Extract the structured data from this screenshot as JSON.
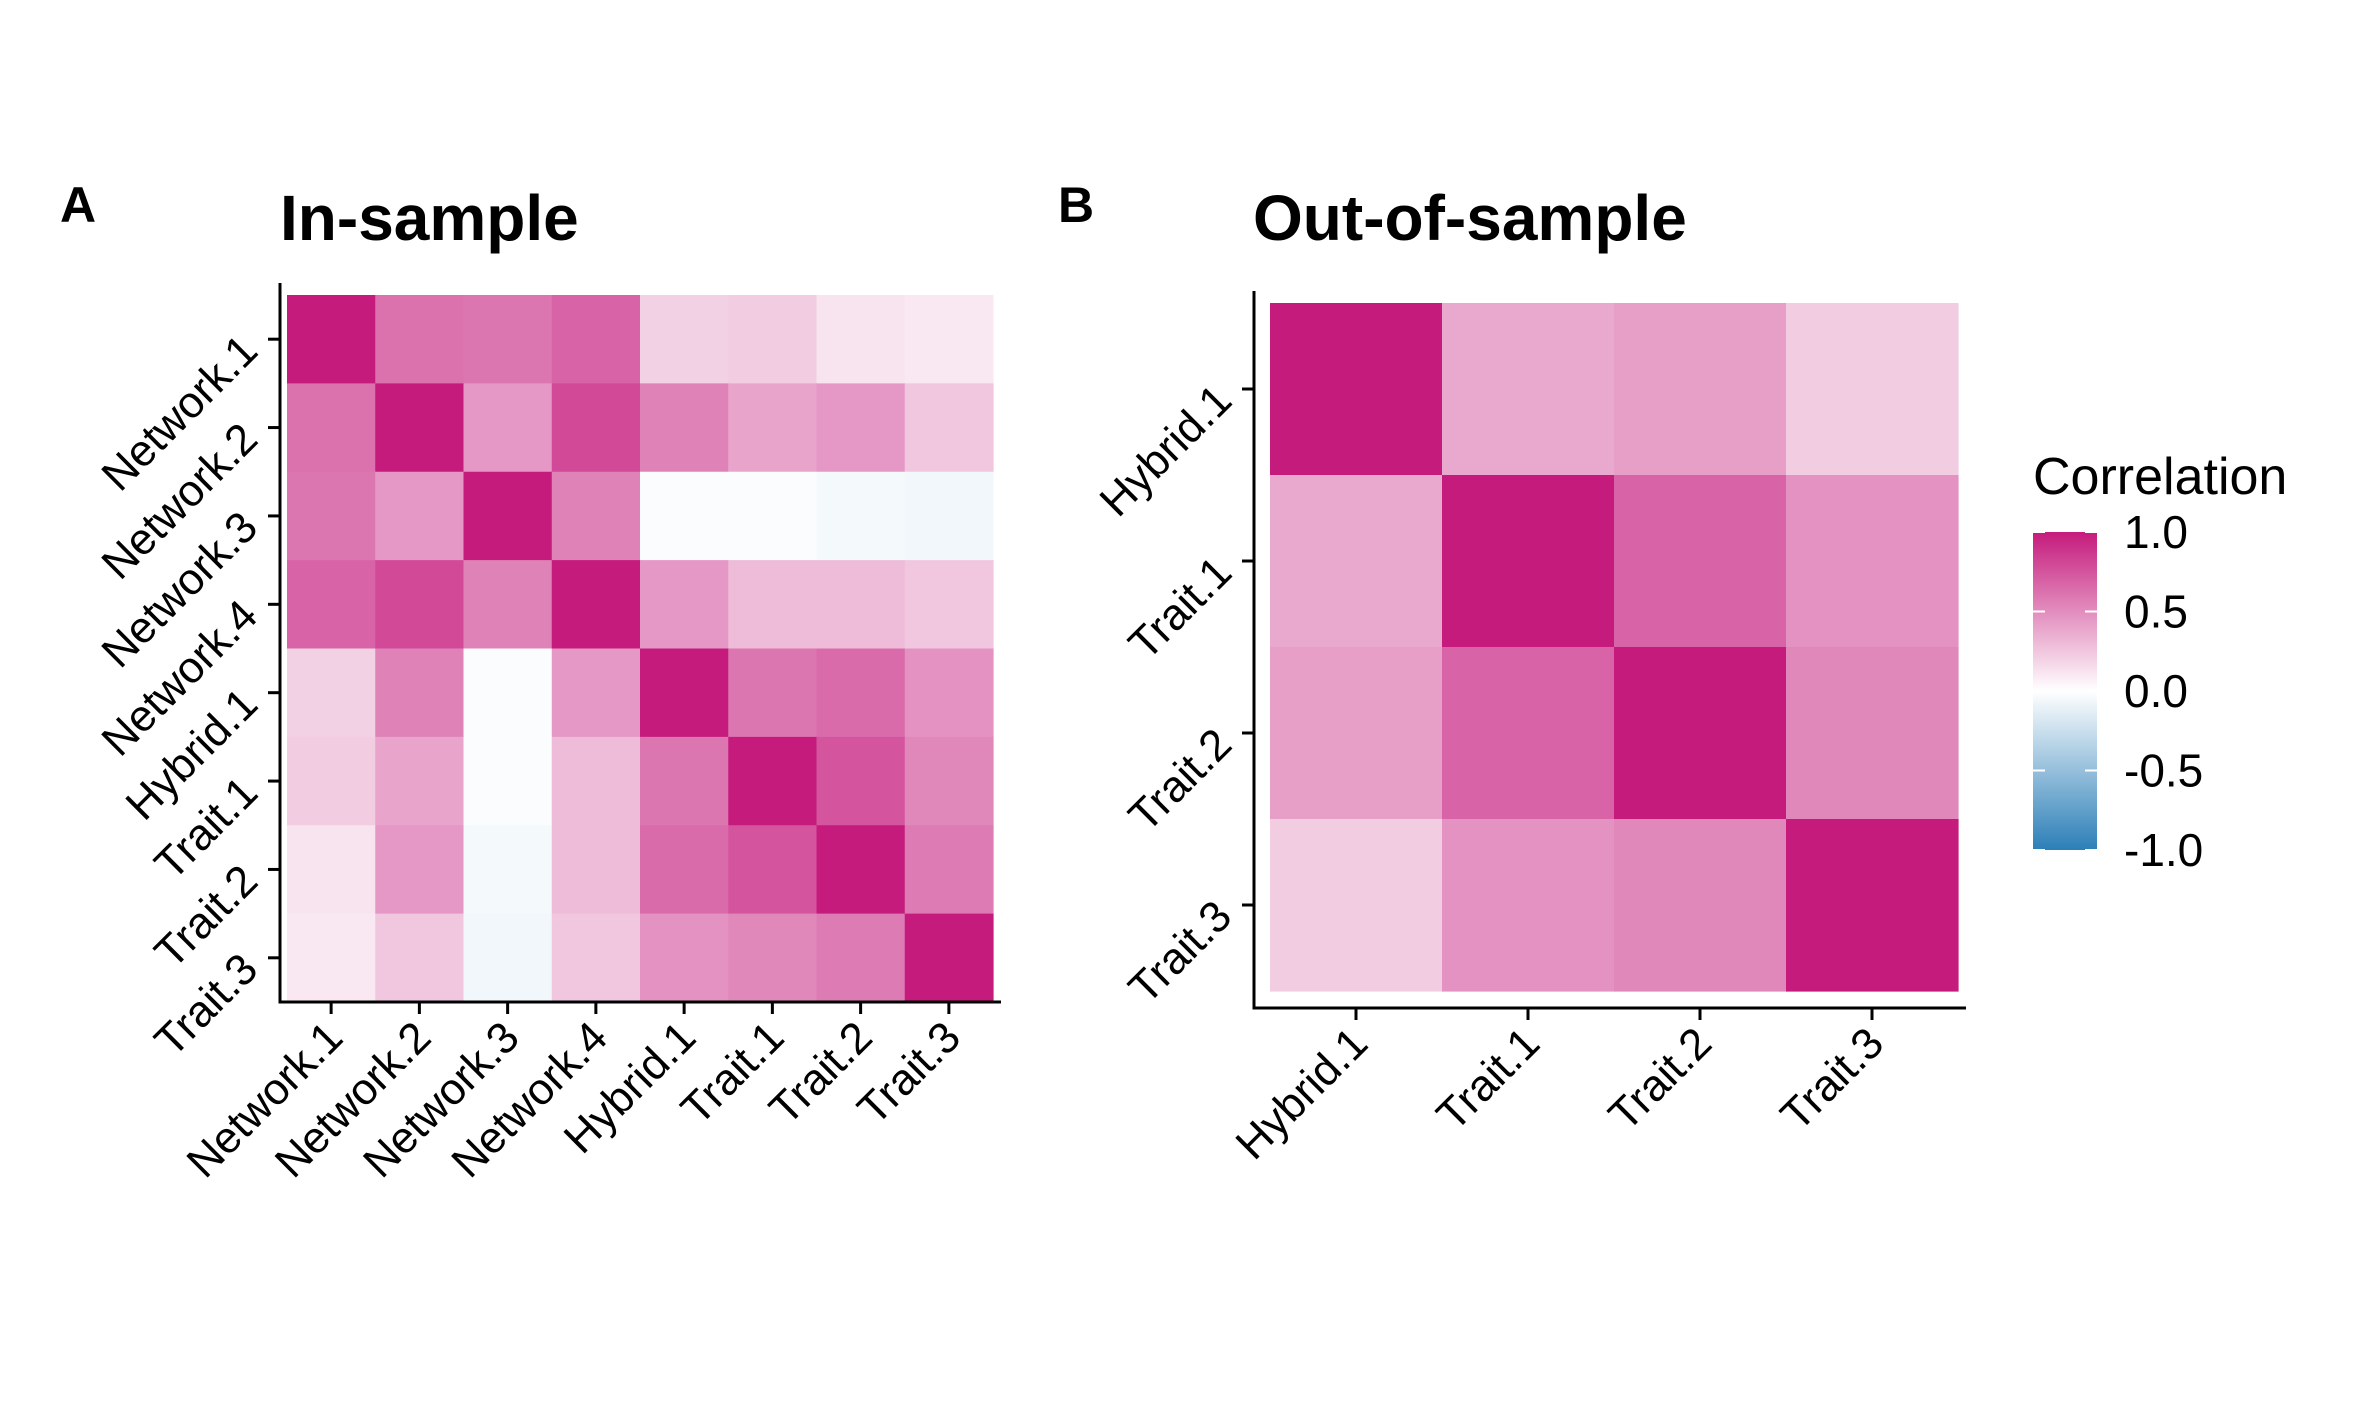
{
  "chart_data": [
    {
      "panel_label": "A",
      "type": "heatmap",
      "title": "In-sample",
      "x_categories": [
        "Network.1",
        "Network.2",
        "Network.3",
        "Network.4",
        "Hybrid.1",
        "Trait.1",
        "Trait.2",
        "Trait.3"
      ],
      "y_categories": [
        "Network.1",
        "Network.2",
        "Network.3",
        "Network.4",
        "Hybrid.1",
        "Trait.1",
        "Trait.2",
        "Trait.3"
      ],
      "values": [
        [
          1.0,
          0.62,
          0.6,
          0.68,
          0.2,
          0.22,
          0.12,
          0.1
        ],
        [
          0.62,
          1.0,
          0.45,
          0.8,
          0.55,
          0.4,
          0.45,
          0.25
        ],
        [
          0.6,
          0.45,
          1.0,
          0.55,
          -0.02,
          -0.02,
          -0.05,
          -0.06
        ],
        [
          0.68,
          0.8,
          0.55,
          1.0,
          0.45,
          0.3,
          0.3,
          0.25
        ],
        [
          0.2,
          0.55,
          -0.02,
          0.45,
          1.0,
          0.6,
          0.65,
          0.48
        ],
        [
          0.22,
          0.4,
          -0.02,
          0.3,
          0.6,
          1.0,
          0.75,
          0.52
        ],
        [
          0.12,
          0.45,
          -0.05,
          0.3,
          0.65,
          0.75,
          1.0,
          0.58
        ],
        [
          0.1,
          0.25,
          -0.06,
          0.25,
          0.48,
          0.52,
          0.58,
          1.0
        ]
      ]
    },
    {
      "panel_label": "B",
      "type": "heatmap",
      "title": "Out-of-sample",
      "x_categories": [
        "Hybrid.1",
        "Trait.1",
        "Trait.2",
        "Trait.3"
      ],
      "y_categories": [
        "Hybrid.1",
        "Trait.1",
        "Trait.2",
        "Trait.3"
      ],
      "values": [
        [
          1.0,
          0.38,
          0.42,
          0.22
        ],
        [
          0.38,
          1.0,
          0.68,
          0.48
        ],
        [
          0.42,
          0.68,
          1.0,
          0.52
        ],
        [
          0.22,
          0.48,
          0.52,
          1.0
        ]
      ]
    }
  ],
  "legend": {
    "title": "Correlation",
    "ticks": [
      "1.0",
      "0.5",
      "0.0",
      "-0.5",
      "-1.0"
    ],
    "tick_values": [
      1.0,
      0.5,
      0.0,
      -0.5,
      -1.0
    ],
    "range": [
      -1,
      1
    ]
  },
  "colors": {
    "high": "#c51b7d",
    "mid": "#ffffff",
    "low": "#2c7fb8"
  }
}
